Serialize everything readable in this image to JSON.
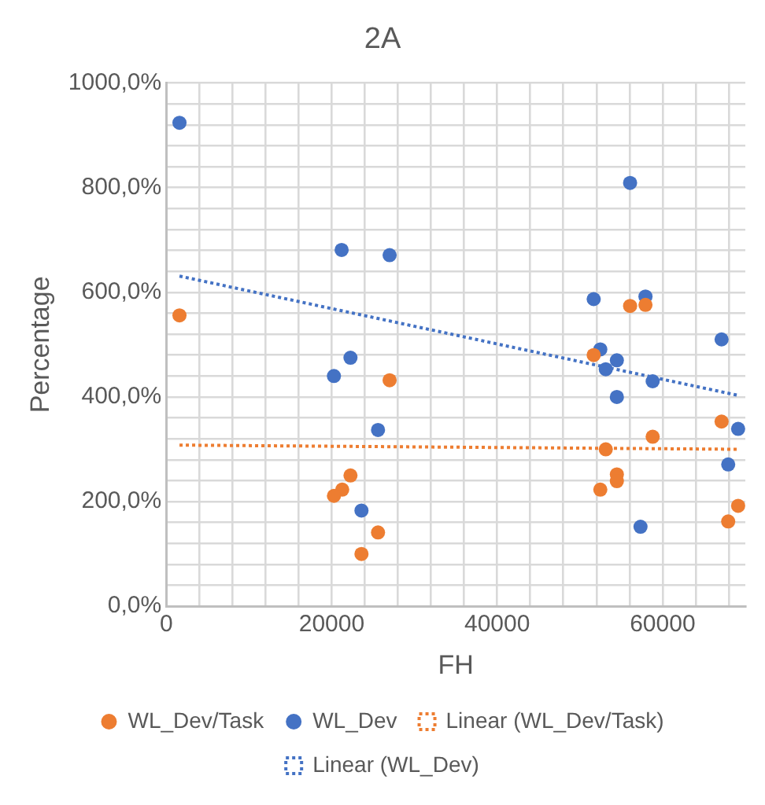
{
  "chart_data": {
    "type": "scatter",
    "title": "2A",
    "xlabel": "FH",
    "ylabel": "Percentage",
    "xlim": [
      0,
      70000
    ],
    "xticks": [
      0,
      {
        "value": 4000,
        "label": null
      },
      {
        "value": 8000,
        "label": null
      },
      {
        "value": 12000,
        "label": null
      },
      {
        "value": 16000,
        "label": null
      },
      20000,
      {
        "value": 24000,
        "label": null
      },
      {
        "value": 28000,
        "label": null
      },
      {
        "value": 32000,
        "label": null
      },
      {
        "value": 36000,
        "label": null
      },
      40000,
      {
        "value": 44000,
        "label": null
      },
      {
        "value": 48000,
        "label": null
      },
      {
        "value": 52000,
        "label": null
      },
      {
        "value": 56000,
        "label": null
      },
      60000,
      {
        "value": 64000,
        "label": null
      },
      {
        "value": 68000,
        "label": null
      }
    ],
    "ylim": [
      0,
      1000
    ],
    "yticks": [
      {
        "value": 0,
        "label": "0,0%"
      },
      {
        "value": 40,
        "label": null
      },
      {
        "value": 80,
        "label": null
      },
      {
        "value": 120,
        "label": null
      },
      {
        "value": 160,
        "label": null
      },
      {
        "value": 200,
        "label": "200,0%"
      },
      {
        "value": 240,
        "label": null
      },
      {
        "value": 280,
        "label": null
      },
      {
        "value": 320,
        "label": null
      },
      {
        "value": 360,
        "label": null
      },
      {
        "value": 400,
        "label": "400,0%"
      },
      {
        "value": 440,
        "label": null
      },
      {
        "value": 480,
        "label": null
      },
      {
        "value": 520,
        "label": null
      },
      {
        "value": 560,
        "label": null
      },
      {
        "value": 600,
        "label": "600,0%"
      },
      {
        "value": 640,
        "label": null
      },
      {
        "value": 680,
        "label": null
      },
      {
        "value": 720,
        "label": null
      },
      {
        "value": 760,
        "label": null
      },
      {
        "value": 800,
        "label": "800,0%"
      },
      {
        "value": 840,
        "label": null
      },
      {
        "value": 880,
        "label": null
      },
      {
        "value": 920,
        "label": null
      },
      {
        "value": 960,
        "label": null
      },
      {
        "value": 1000,
        "label": "1000,0%"
      }
    ],
    "grid": true,
    "legend": "bottom",
    "marker": "circle",
    "series": [
      {
        "name": "WL_Dev/Task",
        "type": "scatter",
        "color": "#ed7d31",
        "x": [
          1600,
          27000,
          22270,
          21270,
          20270,
          25600,
          23600,
          56070,
          57930,
          51670,
          67130,
          58800,
          53130,
          54470,
          54470,
          52470,
          69130,
          67930
        ],
        "values": [
          556,
          432,
          250,
          223,
          211,
          141,
          100,
          574,
          576,
          480,
          353,
          324,
          300,
          252,
          239,
          223,
          192,
          162
        ]
      },
      {
        "name": "WL_Dev",
        "type": "scatter",
        "color": "#4472c4",
        "x": [
          1600,
          21200,
          27000,
          22270,
          20270,
          25600,
          23600,
          56070,
          51670,
          57930,
          67130,
          52470,
          54470,
          53130,
          58800,
          54470,
          69130,
          67930,
          57330
        ],
        "values": [
          924,
          681,
          671,
          475,
          440,
          337,
          183,
          809,
          587,
          592,
          510,
          491,
          470,
          453,
          430,
          400,
          339,
          271,
          152
        ]
      },
      {
        "name": "Linear (WL_Dev/Task)",
        "type": "line",
        "color": "#ed7d31",
        "marker": "none",
        "line_style": "dotted",
        "x": [
          1600,
          69130
        ],
        "values": [
          308,
          300
        ]
      },
      {
        "name": "Linear (WL_Dev)",
        "type": "line",
        "color": "#4472c4",
        "marker": "none",
        "line_style": "dotted",
        "x": [
          1600,
          69130
        ],
        "values": [
          631,
          403
        ]
      }
    ]
  }
}
